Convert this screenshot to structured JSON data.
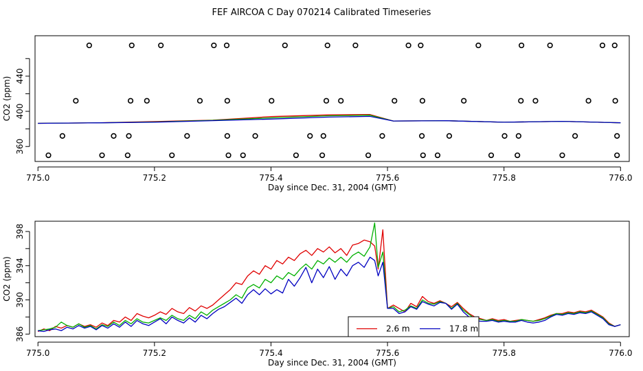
{
  "title": "FEF AIRCOA C  Day 070214  Calibrated Timeseries",
  "chart_data": [
    {
      "type": "scatter",
      "xlabel": "Day since Dec. 31, 2004 (GMT)",
      "ylabel": "CO2 (ppm)",
      "xlim": [
        774.995,
        776.015
      ],
      "ylim": [
        343,
        486
      ],
      "xticks": [
        775.0,
        775.2,
        775.4,
        775.6,
        775.8,
        776.0
      ],
      "xtick_labels": [
        "775.0",
        "775.2",
        "775.4",
        "775.6",
        "775.8",
        "776.0"
      ],
      "yticks": [
        360,
        400,
        440
      ],
      "ytick_labels": [
        "360",
        "400",
        "440"
      ],
      "yticks_minor": [
        380,
        420,
        460
      ],
      "calibration_points": {
        "x": [
          775.088,
          775.161,
          775.211,
          775.302,
          775.324,
          775.424,
          775.497,
          775.545,
          775.636,
          775.657,
          775.756,
          775.83,
          775.879,
          775.969,
          775.99,
          775.065,
          775.159,
          775.187,
          775.278,
          775.325,
          775.401,
          775.495,
          775.52,
          775.612,
          775.66,
          775.731,
          775.829,
          775.854,
          775.945,
          775.991,
          775.042,
          775.13,
          775.156,
          775.256,
          775.325,
          775.373,
          775.467,
          775.49,
          775.591,
          775.659,
          775.706,
          775.801,
          775.825,
          775.922,
          775.994,
          775.018,
          775.11,
          775.154,
          775.23,
          775.327,
          775.352,
          775.443,
          775.488,
          775.567,
          775.661,
          775.686,
          775.778,
          775.823,
          775.9,
          775.994
        ],
        "y": [
          475,
          475,
          475,
          475,
          475,
          475,
          475,
          475,
          475,
          475,
          475,
          475,
          475,
          475,
          475,
          412,
          412,
          412,
          412,
          412,
          412,
          412,
          412,
          412,
          412,
          412,
          412,
          412,
          412,
          412,
          372,
          372,
          372,
          372,
          372,
          372,
          372,
          372,
          372,
          372,
          372,
          372,
          372,
          372,
          372,
          350,
          350,
          350,
          350,
          350,
          350,
          350,
          350,
          350,
          350,
          350,
          350,
          350,
          350,
          350
        ]
      },
      "series": [
        {
          "name": "2.6 m",
          "color": "#e00000",
          "x": [
            775.0,
            775.1,
            775.2,
            775.3,
            775.4,
            775.5,
            775.57,
            775.61,
            775.7,
            775.8,
            775.9,
            776.0
          ],
          "values": [
            386.4,
            386.9,
            388.4,
            390.0,
            394.0,
            396.0,
            396.4,
            389.0,
            389.3,
            387.6,
            388.6,
            387.0
          ]
        },
        {
          "name": "green",
          "color": "#00b000",
          "x": [
            775.0,
            775.1,
            775.2,
            775.3,
            775.4,
            775.5,
            775.57,
            775.61,
            775.7,
            775.8,
            775.9,
            776.0
          ],
          "values": [
            386.4,
            386.9,
            387.9,
            389.7,
            392.6,
            395.0,
            395.6,
            389.0,
            389.3,
            387.6,
            388.6,
            387.0
          ]
        },
        {
          "name": "17.8 m",
          "color": "#0000c0",
          "x": [
            775.0,
            775.1,
            775.2,
            775.3,
            775.4,
            775.5,
            775.57,
            775.61,
            775.7,
            775.8,
            775.9,
            776.0
          ],
          "values": [
            386.4,
            386.9,
            387.6,
            389.4,
            391.2,
            393.5,
            394.3,
            389.0,
            389.3,
            387.6,
            388.6,
            387.0
          ]
        }
      ]
    },
    {
      "type": "line",
      "xlabel": "Day since Dec. 31, 2004 (GMT)",
      "ylabel": "CO2 (ppm)",
      "xlim": [
        774.995,
        776.015
      ],
      "ylim": [
        385.7,
        399.2
      ],
      "xticks": [
        775.0,
        775.2,
        775.4,
        775.6,
        775.8,
        776.0
      ],
      "xtick_labels": [
        "775.0",
        "775.2",
        "775.4",
        "775.6",
        "775.8",
        "776.0"
      ],
      "yticks": [
        386,
        390,
        394,
        398
      ],
      "ytick_labels": [
        "386",
        "390",
        "394",
        "398"
      ],
      "yticks_minor": [
        388,
        392,
        396
      ],
      "legend_position": "bottom-center",
      "legend": [
        "2.6 m",
        "17.8 m"
      ],
      "series": [
        {
          "name": "2.6 m",
          "color": "#e00000",
          "x": [
            775.0,
            775.01,
            775.02,
            775.03,
            775.04,
            775.05,
            775.06,
            775.07,
            775.08,
            775.09,
            775.1,
            775.11,
            775.12,
            775.13,
            775.14,
            775.15,
            775.16,
            775.17,
            775.18,
            775.19,
            775.2,
            775.21,
            775.22,
            775.23,
            775.24,
            775.25,
            775.26,
            775.27,
            775.28,
            775.29,
            775.3,
            775.31,
            775.32,
            775.33,
            775.34,
            775.35,
            775.36,
            775.37,
            775.38,
            775.39,
            775.4,
            775.41,
            775.42,
            775.43,
            775.44,
            775.45,
            775.46,
            775.47,
            775.48,
            775.49,
            775.5,
            775.51,
            775.52,
            775.53,
            775.54,
            775.55,
            775.56,
            775.57,
            775.578,
            775.584,
            775.592,
            775.6,
            775.61,
            775.62,
            775.63,
            775.64,
            775.65,
            775.66,
            775.67,
            775.68,
            775.69,
            775.7,
            775.71,
            775.72,
            775.73,
            775.74,
            775.75,
            775.76,
            775.77,
            775.78,
            775.79,
            775.8,
            775.81,
            775.82,
            775.83,
            775.84,
            775.85,
            775.86,
            775.87,
            775.88,
            775.89,
            775.9,
            775.91,
            775.92,
            775.93,
            775.94,
            775.95,
            775.96,
            775.97,
            775.98,
            775.99,
            776.0
          ],
          "values": [
            386.3,
            386.6,
            386.4,
            386.9,
            386.7,
            387.0,
            386.8,
            387.2,
            386.9,
            387.1,
            386.8,
            387.3,
            387.0,
            387.6,
            387.4,
            388.0,
            387.6,
            388.4,
            388.1,
            387.9,
            388.2,
            388.6,
            388.3,
            389.0,
            388.6,
            388.4,
            389.1,
            388.7,
            389.3,
            389.0,
            389.4,
            390.0,
            390.6,
            391.2,
            392.0,
            391.8,
            392.8,
            393.4,
            393.0,
            394.0,
            393.6,
            394.6,
            394.2,
            395.0,
            394.6,
            395.4,
            395.8,
            395.2,
            396.0,
            395.6,
            396.2,
            395.5,
            396.0,
            395.2,
            396.4,
            396.6,
            397.0,
            396.8,
            396.3,
            393.6,
            398.2,
            389.0,
            389.4,
            389.0,
            388.6,
            389.6,
            389.2,
            390.4,
            389.8,
            389.6,
            389.9,
            389.6,
            389.2,
            389.7,
            389.0,
            388.4,
            388.0,
            387.8,
            387.6,
            387.8,
            387.6,
            387.7,
            387.5,
            387.6,
            387.7,
            387.6,
            387.5,
            387.7,
            387.9,
            388.2,
            388.4,
            388.4,
            388.6,
            388.5,
            388.7,
            388.6,
            388.8,
            388.4,
            388.0,
            387.3,
            386.9,
            387.1
          ]
        },
        {
          "name": "green",
          "color": "#00b000",
          "x": [
            775.0,
            775.01,
            775.02,
            775.03,
            775.04,
            775.05,
            775.06,
            775.07,
            775.08,
            775.09,
            775.1,
            775.11,
            775.12,
            775.13,
            775.14,
            775.15,
            775.16,
            775.17,
            775.18,
            775.19,
            775.2,
            775.21,
            775.22,
            775.23,
            775.24,
            775.25,
            775.26,
            775.27,
            775.28,
            775.29,
            775.3,
            775.31,
            775.32,
            775.33,
            775.34,
            775.35,
            775.36,
            775.37,
            775.38,
            775.39,
            775.4,
            775.41,
            775.42,
            775.43,
            775.44,
            775.45,
            775.46,
            775.47,
            775.48,
            775.49,
            775.5,
            775.51,
            775.52,
            775.53,
            775.54,
            775.55,
            775.56,
            775.57,
            775.578,
            775.584,
            775.592,
            775.6,
            775.61,
            775.62,
            775.63,
            775.64,
            775.65,
            775.66,
            775.67,
            775.68,
            775.69,
            775.7,
            775.71,
            775.72,
            775.73,
            775.74,
            775.75,
            775.76,
            775.77,
            775.78,
            775.79,
            775.8,
            775.81,
            775.82,
            775.83,
            775.84,
            775.85,
            775.86,
            775.87,
            775.88,
            775.89,
            775.9,
            775.91,
            775.92,
            775.93,
            775.94,
            775.95,
            775.96,
            775.97,
            775.98,
            775.99,
            776.0
          ],
          "values": [
            386.4,
            386.5,
            386.6,
            386.8,
            387.4,
            387.0,
            386.8,
            387.2,
            386.8,
            387.0,
            386.6,
            387.1,
            386.9,
            387.4,
            387.0,
            387.6,
            387.2,
            387.8,
            387.4,
            387.3,
            387.6,
            387.9,
            387.6,
            388.2,
            387.8,
            387.6,
            388.2,
            387.8,
            388.6,
            388.2,
            388.8,
            389.2,
            389.6,
            390.0,
            390.6,
            390.2,
            391.4,
            391.8,
            391.4,
            392.4,
            392.0,
            392.8,
            392.4,
            393.2,
            392.8,
            393.6,
            394.2,
            393.6,
            394.6,
            394.2,
            394.9,
            394.4,
            395.0,
            394.4,
            395.2,
            395.6,
            395.1,
            396.2,
            399.0,
            393.8,
            395.6,
            389.0,
            389.2,
            388.6,
            388.8,
            389.3,
            389.0,
            390.0,
            389.6,
            389.5,
            389.8,
            389.6,
            389.0,
            389.6,
            388.8,
            388.3,
            387.8,
            387.7,
            387.6,
            387.7,
            387.5,
            387.6,
            387.5,
            387.5,
            387.7,
            387.6,
            387.5,
            387.6,
            387.8,
            388.1,
            388.4,
            388.3,
            388.5,
            388.4,
            388.6,
            388.5,
            388.7,
            388.3,
            387.9,
            387.2,
            386.9,
            387.1
          ]
        },
        {
          "name": "17.8 m",
          "color": "#0000c0",
          "x": [
            775.0,
            775.01,
            775.02,
            775.03,
            775.04,
            775.05,
            775.06,
            775.07,
            775.08,
            775.09,
            775.1,
            775.11,
            775.12,
            775.13,
            775.14,
            775.15,
            775.16,
            775.17,
            775.18,
            775.19,
            775.2,
            775.21,
            775.22,
            775.23,
            775.24,
            775.25,
            775.26,
            775.27,
            775.28,
            775.29,
            775.3,
            775.31,
            775.32,
            775.33,
            775.34,
            775.35,
            775.36,
            775.37,
            775.38,
            775.39,
            775.4,
            775.41,
            775.42,
            775.43,
            775.44,
            775.45,
            775.46,
            775.47,
            775.48,
            775.49,
            775.5,
            775.51,
            775.52,
            775.53,
            775.54,
            775.55,
            775.56,
            775.57,
            775.578,
            775.584,
            775.592,
            775.6,
            775.61,
            775.62,
            775.63,
            775.64,
            775.65,
            775.66,
            775.67,
            775.68,
            775.69,
            775.7,
            775.71,
            775.72,
            775.73,
            775.74,
            775.75,
            775.76,
            775.77,
            775.78,
            775.79,
            775.8,
            775.81,
            775.82,
            775.83,
            775.84,
            775.85,
            775.86,
            775.87,
            775.88,
            775.89,
            775.9,
            775.91,
            775.92,
            775.93,
            775.94,
            775.95,
            775.96,
            775.97,
            775.98,
            775.99,
            776.0
          ],
          "values": [
            386.4,
            386.3,
            386.5,
            386.6,
            386.4,
            386.8,
            386.6,
            387.0,
            386.7,
            386.9,
            386.5,
            387.0,
            386.7,
            387.2,
            386.8,
            387.4,
            386.9,
            387.6,
            387.2,
            387.0,
            387.4,
            387.8,
            387.2,
            388.0,
            387.6,
            387.3,
            387.9,
            387.4,
            388.2,
            387.8,
            388.4,
            388.9,
            389.2,
            389.7,
            390.2,
            389.6,
            390.6,
            391.2,
            390.6,
            391.3,
            390.7,
            391.2,
            390.8,
            392.4,
            391.6,
            392.6,
            393.8,
            392.0,
            393.6,
            392.6,
            393.9,
            392.4,
            393.6,
            392.8,
            394.0,
            394.4,
            393.8,
            395.0,
            394.6,
            392.8,
            394.4,
            389.0,
            389.0,
            388.4,
            388.6,
            389.2,
            388.9,
            389.8,
            389.5,
            389.3,
            389.7,
            389.6,
            388.9,
            389.5,
            388.6,
            388.0,
            387.6,
            387.5,
            387.5,
            387.6,
            387.4,
            387.5,
            387.4,
            387.4,
            387.6,
            387.4,
            387.3,
            387.4,
            387.6,
            388.0,
            388.3,
            388.2,
            388.4,
            388.3,
            388.5,
            388.4,
            388.6,
            388.2,
            387.8,
            387.1,
            386.9,
            387.1
          ]
        }
      ]
    }
  ]
}
